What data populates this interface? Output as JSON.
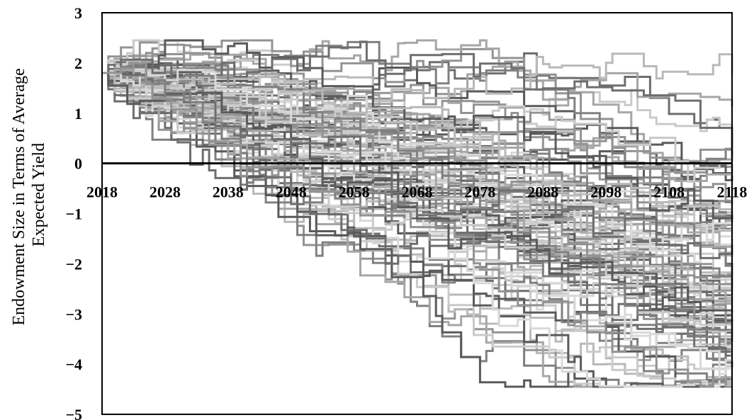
{
  "chart_data": {
    "type": "line",
    "title": "",
    "xlabel": "",
    "ylabel_line1": "Endowment Size in Terms of Average",
    "ylabel_line2": "Expected Yield",
    "x_range": [
      2018,
      2118
    ],
    "y_range": [
      -5,
      3
    ],
    "x_ticks": [
      "2018",
      "2028",
      "2038",
      "2048",
      "2058",
      "2068",
      "2078",
      "2088",
      "2098",
      "2108",
      "2118"
    ],
    "y_ticks": [
      "3",
      "2",
      "1",
      "0",
      "-1",
      "-2",
      "-3",
      "-4",
      "-5"
    ],
    "zero_line": true,
    "grid": false,
    "legend": "none",
    "simulated_paths": 100,
    "path_start_value": 1.8,
    "path_end_range": [
      -4.3,
      -0.6
    ],
    "series_colors": [
      "#5a5a5a",
      "#6e6e6e",
      "#808080",
      "#939393",
      "#a6a6a6",
      "#b9b9b9",
      "#cacaca",
      "#d9d9d9"
    ]
  }
}
